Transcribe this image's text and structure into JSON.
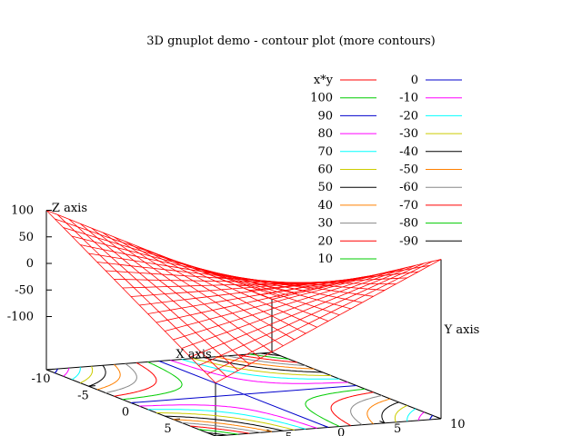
{
  "chart_data": {
    "type": "surface3d",
    "title": "3D gnuplot demo - contour plot (more contours)",
    "function": "x*y",
    "xlabel": "X axis",
    "ylabel": "Y axis",
    "zlabel": "Z axis",
    "xlim": [
      -10,
      10
    ],
    "ylim": [
      -10,
      10
    ],
    "zlim": [
      -100,
      100
    ],
    "x_ticks": [
      -10,
      -5,
      0,
      5,
      10
    ],
    "y_ticks": [
      -10,
      -5,
      0,
      5,
      10
    ],
    "z_ticks": [
      100,
      50,
      0,
      -50,
      -100
    ],
    "x_tick_labels": [
      "-10",
      "-5",
      "0",
      "5",
      "10"
    ],
    "y_tick_labels": [
      "-10",
      "-5",
      "0",
      "5",
      "10"
    ],
    "z_tick_labels": [
      "100",
      "50",
      "0",
      "-50",
      "-100"
    ],
    "grid_steps": 20,
    "surface_color": "#ff0000",
    "contour_levels": [
      100,
      90,
      80,
      70,
      60,
      50,
      40,
      30,
      20,
      10,
      0,
      -10,
      -20,
      -30,
      -40,
      -50,
      -60,
      -70,
      -80,
      -90
    ],
    "contour_labels": [
      "100",
      "90",
      "80",
      "70",
      "60",
      "50",
      "40",
      "30",
      "20",
      "10",
      "0",
      "-10",
      "-20",
      "-30",
      "-40",
      "-50",
      "-60",
      "-70",
      "-80",
      "-90"
    ],
    "contour_colors": [
      "#00cc00",
      "#0000cc",
      "#ff00ff",
      "#00ffff",
      "#cccc00",
      "#000000",
      "#ff8000",
      "#888888",
      "#ff0000",
      "#00cc00",
      "#0000cc",
      "#ff00ff",
      "#00ffff",
      "#cccc00",
      "#000000",
      "#ff8000",
      "#888888",
      "#ff0000",
      "#00cc00",
      "#000000"
    ],
    "legend": {
      "surface_label": "x*y",
      "placement": "top-right"
    }
  }
}
